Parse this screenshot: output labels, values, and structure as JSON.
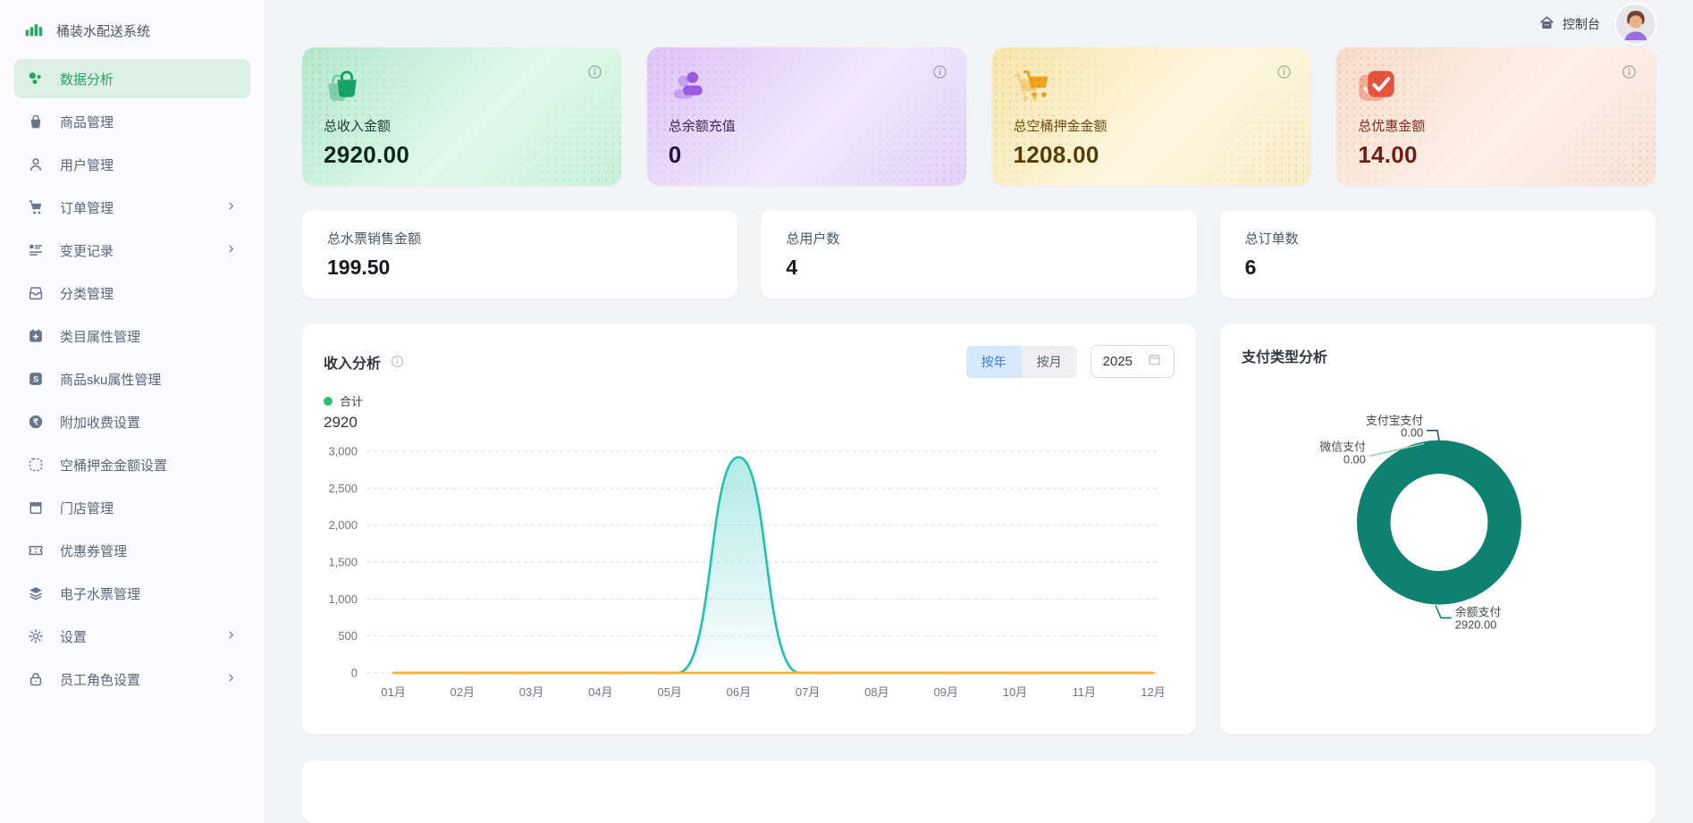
{
  "app": {
    "title": "桶装水配送系统"
  },
  "header": {
    "console": "控制台"
  },
  "sidebar": {
    "items": [
      {
        "id": "data-analysis",
        "label": "数据分析",
        "icon": "analytics-icon",
        "active": true,
        "chevron": false
      },
      {
        "id": "products",
        "label": "商品管理",
        "icon": "bag-icon",
        "active": false,
        "chevron": false
      },
      {
        "id": "users",
        "label": "用户管理",
        "icon": "user-icon",
        "active": false,
        "chevron": false
      },
      {
        "id": "orders",
        "label": "订单管理",
        "icon": "cart-icon",
        "active": false,
        "chevron": true
      },
      {
        "id": "change-log",
        "label": "变更记录",
        "icon": "changelog-icon",
        "active": false,
        "chevron": true
      },
      {
        "id": "categories",
        "label": "分类管理",
        "icon": "category-icon",
        "active": false,
        "chevron": false
      },
      {
        "id": "category-attrs",
        "label": "类目属性管理",
        "icon": "calendar-plus-icon",
        "active": false,
        "chevron": false
      },
      {
        "id": "sku-attrs",
        "label": "商品sku属性管理",
        "icon": "sku-icon",
        "active": false,
        "chevron": false
      },
      {
        "id": "surcharge",
        "label": "附加收费设置",
        "icon": "surcharge-icon",
        "active": false,
        "chevron": false
      },
      {
        "id": "bucket-deposit",
        "label": "空桶押金金额设置",
        "icon": "deposit-icon",
        "active": false,
        "chevron": false
      },
      {
        "id": "stores",
        "label": "门店管理",
        "icon": "store-icon",
        "active": false,
        "chevron": false
      },
      {
        "id": "coupons",
        "label": "优惠券管理",
        "icon": "coupon-icon",
        "active": false,
        "chevron": false
      },
      {
        "id": "water-tickets",
        "label": "电子水票管理",
        "icon": "layers-icon",
        "active": false,
        "chevron": false
      },
      {
        "id": "settings",
        "label": "设置",
        "icon": "gear-icon",
        "active": false,
        "chevron": true
      },
      {
        "id": "staff-roles",
        "label": "员工角色设置",
        "icon": "lock-icon",
        "active": false,
        "chevron": true
      }
    ]
  },
  "stat_cards": [
    {
      "id": "total-income",
      "label": "总收入金额",
      "value": "2920.00",
      "icon": "bag-icon",
      "theme": "green",
      "icon_color": "#16a363"
    },
    {
      "id": "total-balance-recharge",
      "label": "总余额充值",
      "value": "0",
      "icon": "user-icon",
      "theme": "purple",
      "icon_color": "#9a5ce6"
    },
    {
      "id": "total-bucket-deposit",
      "label": "总空桶押金金额",
      "value": "1208.00",
      "icon": "cart-icon",
      "theme": "yellow",
      "icon_color": "#f0a31f"
    },
    {
      "id": "total-discount",
      "label": "总优惠金额",
      "value": "14.00",
      "icon": "check-icon",
      "theme": "orange",
      "icon_color": "#e8533c"
    }
  ],
  "summary_cards": [
    {
      "id": "water-ticket-sales",
      "label": "总水票销售金额",
      "value": "199.50"
    },
    {
      "id": "total-users",
      "label": "总用户数",
      "value": "4"
    },
    {
      "id": "total-orders",
      "label": "总订单数",
      "value": "6"
    }
  ],
  "income_panel": {
    "title": "收入分析",
    "toggle": [
      {
        "label": "按年",
        "active": true
      },
      {
        "label": "按月",
        "active": false
      }
    ],
    "year": "2025",
    "legend": {
      "label": "合计",
      "color": "#2fbf71",
      "total": "2920"
    }
  },
  "payment_panel": {
    "title": "支付类型分析"
  },
  "chart_data": [
    {
      "type": "area",
      "title": "收入分析",
      "categories": [
        "01月",
        "02月",
        "03月",
        "04月",
        "05月",
        "06月",
        "07月",
        "08月",
        "09月",
        "10月",
        "11月",
        "12月"
      ],
      "series": [
        {
          "name": "合计",
          "color": "#1fc2b2",
          "values": [
            0,
            0,
            0,
            0,
            0,
            2920,
            0,
            0,
            0,
            0,
            0,
            0
          ]
        }
      ],
      "baseline_color": "#f7b034",
      "ylim": [
        0,
        3000
      ],
      "y_ticks": [
        "0",
        "500",
        "1,000",
        "1,500",
        "2,000",
        "2,500",
        "3,000"
      ],
      "grid": "dashed",
      "legend_position": "top-left"
    },
    {
      "type": "pie",
      "title": "支付类型分析",
      "slices": [
        {
          "name": "支付宝支付",
          "value": 0,
          "display": "0.00",
          "color": "#2b4d66"
        },
        {
          "name": "微信支付",
          "value": 0,
          "display": "0.00",
          "color": "#8fd6a8"
        },
        {
          "name": "余额支付",
          "value": 2920,
          "display": "2920.00",
          "color": "#0f8170"
        }
      ]
    }
  ]
}
